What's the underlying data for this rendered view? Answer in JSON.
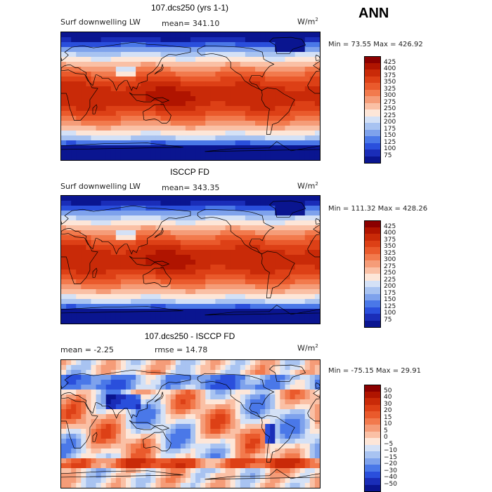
{
  "season": "ANN",
  "units_prefix": "W/m",
  "units_power": "2",
  "chart_data": [
    {
      "type": "heatmap",
      "title": "107.dcs250 (yrs 1-1)",
      "variable": "Surf downwelling LW",
      "stat_left": "mean=  341.10",
      "stat_right": "",
      "minmax": "Min =  73.55 Max = 426.92",
      "units": "W/m^2",
      "levels": [
        425,
        400,
        375,
        350,
        325,
        300,
        275,
        250,
        225,
        200,
        175,
        150,
        125,
        100,
        75
      ],
      "level_labels": [
        "425",
        "400",
        "375",
        "350",
        "325",
        "300",
        "275",
        "250",
        "225",
        "200",
        "175",
        "150",
        "125",
        "100",
        "75"
      ],
      "colors": [
        "#8b0000",
        "#b01400",
        "#c92a08",
        "#dd4016",
        "#ea5a2c",
        "#f27a4d",
        "#f59c78",
        "#fac0a5",
        "#fde6d8",
        "#d4e1f6",
        "#a8c3f1",
        "#7ea2ec",
        "#4a78e8",
        "#2a4fdc",
        "#1a2db8",
        "#0a1590"
      ],
      "field": "mean"
    },
    {
      "type": "heatmap",
      "title": "ISCCP FD",
      "variable": "Surf downwelling LW",
      "stat_left": "mean=  343.35",
      "stat_right": "",
      "minmax": "Min = 111.32 Max = 428.26",
      "units": "W/m^2",
      "levels": [
        425,
        400,
        375,
        350,
        325,
        300,
        275,
        250,
        225,
        200,
        175,
        150,
        125,
        100,
        75
      ],
      "level_labels": [
        "425",
        "400",
        "375",
        "350",
        "325",
        "300",
        "275",
        "250",
        "225",
        "200",
        "175",
        "150",
        "125",
        "100",
        "75"
      ],
      "colors": [
        "#8b0000",
        "#b01400",
        "#c92a08",
        "#dd4016",
        "#ea5a2c",
        "#f27a4d",
        "#f59c78",
        "#fac0a5",
        "#fde6d8",
        "#d4e1f6",
        "#a8c3f1",
        "#7ea2ec",
        "#4a78e8",
        "#2a4fdc",
        "#1a2db8",
        "#0a1590"
      ],
      "field": "mean"
    },
    {
      "type": "heatmap",
      "title": "107.dcs250 - ISCCP FD",
      "variable": "",
      "stat_left": "mean =  -2.25",
      "stat_right": "rmse =  14.78",
      "minmax": "Min = -75.15 Max =  29.91",
      "units": "W/m^2",
      "levels": [
        50,
        40,
        30,
        20,
        15,
        10,
        5,
        0,
        -5,
        -10,
        -15,
        -20,
        -30,
        -40,
        -50
      ],
      "level_labels": [
        "50",
        "40",
        "30",
        "20",
        "15",
        "10",
        "5",
        "0",
        "−5",
        "−10",
        "−15",
        "−20",
        "−30",
        "−40",
        "−50"
      ],
      "colors": [
        "#8b0000",
        "#b01400",
        "#c92a08",
        "#dd4016",
        "#ea5a2c",
        "#f27a4d",
        "#f59c78",
        "#fac0a5",
        "#fde6d8",
        "#d4e1f6",
        "#a8c3f1",
        "#7ea2ec",
        "#4a78e8",
        "#2a4fdc",
        "#1a2db8",
        "#0a1590"
      ],
      "field": "diff"
    }
  ]
}
